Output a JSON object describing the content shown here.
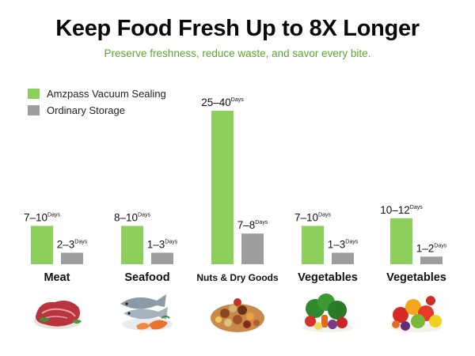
{
  "header": {
    "title": "Keep Food Fresh Up to 8X Longer",
    "subtitle": "Preserve freshness, reduce waste, and savor every bite."
  },
  "legend": [
    {
      "label": "Amzpass Vacuum Sealing",
      "color": "#8dcf5d"
    },
    {
      "label": "Ordinary Storage",
      "color": "#9e9e9e"
    }
  ],
  "colors": {
    "sealed": "#8dcf5d",
    "ordinary": "#9e9e9e",
    "accent": "#5aa52e"
  },
  "chart_data": {
    "type": "bar",
    "categories": [
      "Meat",
      "Seafood",
      "Nuts & Dry Goods",
      "Vegetables",
      "Vegetables"
    ],
    "unit": "Days",
    "series": [
      {
        "name": "Amzpass Vacuum Sealing",
        "values": [
          10,
          10,
          40,
          10,
          12
        ],
        "labels": [
          "7–10",
          "8–10",
          "25–40",
          "7–10",
          "10–12"
        ]
      },
      {
        "name": "Ordinary Storage",
        "values": [
          3,
          3,
          8,
          3,
          2
        ],
        "labels": [
          "2–3",
          "1–3",
          "7–8",
          "1–3",
          "1–2"
        ]
      }
    ],
    "ylim": [
      0,
      42
    ],
    "legend_position": "top-left",
    "grid": false
  },
  "images": [
    {
      "icon": "meat-icon"
    },
    {
      "icon": "seafood-icon"
    },
    {
      "icon": "nuts-icon"
    },
    {
      "icon": "vegetables-icon"
    },
    {
      "icon": "fruits-icon"
    }
  ]
}
